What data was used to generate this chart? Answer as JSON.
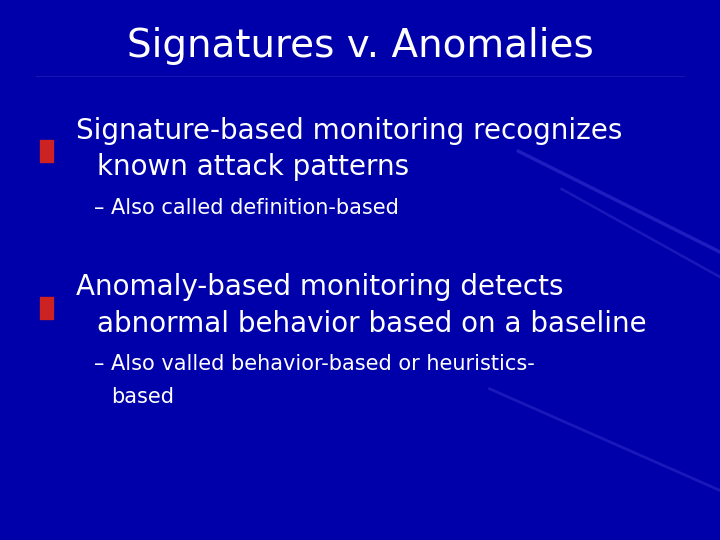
{
  "title": "Signatures v. Anomalies",
  "title_fontsize": 28,
  "title_color": "#FFFFFF",
  "background_color": "#0000AA",
  "bullet_color": "#CC2222",
  "text_color": "#FFFFFF",
  "bullet1_line1": "Signature-based monitoring recognizes",
  "bullet1_line2": "known attack patterns",
  "sub1": "– Also called definition-based",
  "bullet2_line1": "Anomaly-based monitoring detects",
  "bullet2_line2": "abnormal behavior based on a baseline",
  "sub2_line1": "– Also valled behavior-based or heuristics-",
  "sub2_line2": "based",
  "bullet_fontsize": 20,
  "sub_fontsize": 15,
  "fig_width": 7.2,
  "fig_height": 5.4,
  "dpi": 100
}
